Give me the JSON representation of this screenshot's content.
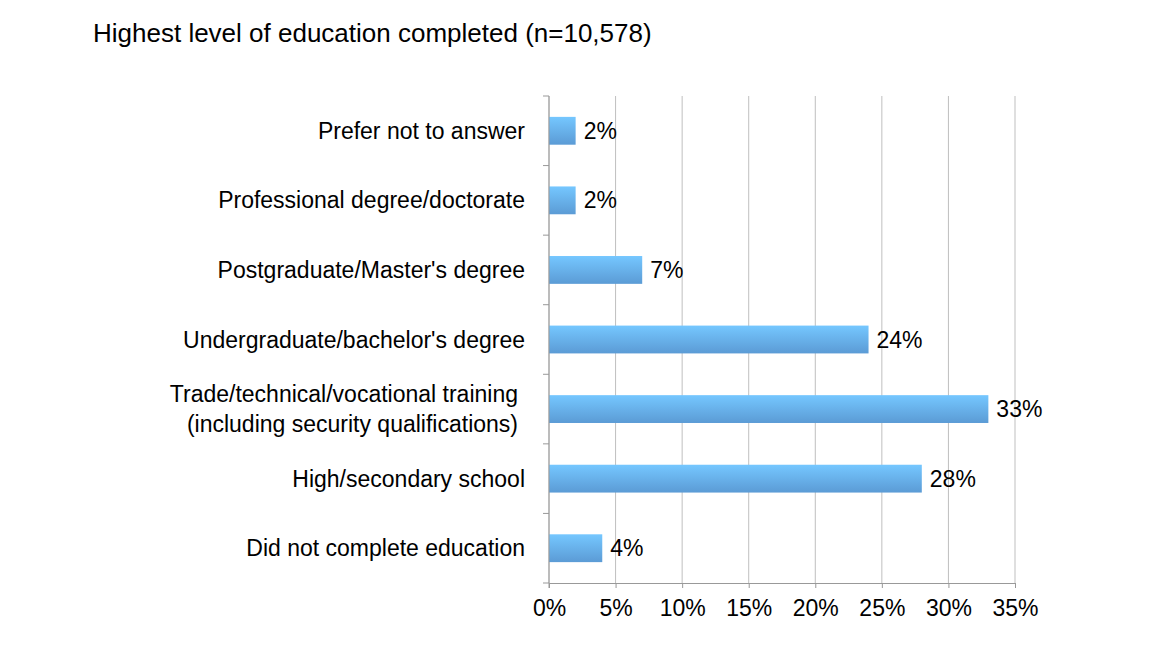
{
  "chart_data": {
    "type": "bar",
    "title": "Highest level of education completed (n=10,578)",
    "orientation": "horizontal",
    "categories": [
      "Prefer not to answer",
      "Professional degree/doctorate",
      "Postgraduate/Master's degree",
      "Undergraduate/bachelor's degree",
      "Trade/technical/vocational training\n(including security qualifications)",
      "High/secondary school",
      "Did not complete education"
    ],
    "values": [
      2,
      2,
      7,
      24,
      33,
      28,
      4
    ],
    "value_labels": [
      "2%",
      "2%",
      "7%",
      "24%",
      "33%",
      "28%",
      "4%"
    ],
    "color": "#5b9bd5",
    "xlim": [
      0,
      35
    ],
    "xticks": [
      {
        "value": 0,
        "label": "0%"
      },
      {
        "value": 5,
        "label": "5%"
      },
      {
        "value": 10,
        "label": "10%"
      },
      {
        "value": 15,
        "label": "15%"
      },
      {
        "value": 20,
        "label": "20%"
      },
      {
        "value": 25,
        "label": "25%"
      },
      {
        "value": 30,
        "label": "30%"
      },
      {
        "value": 35,
        "label": "35%"
      }
    ],
    "grid": true,
    "data_labels": true
  }
}
